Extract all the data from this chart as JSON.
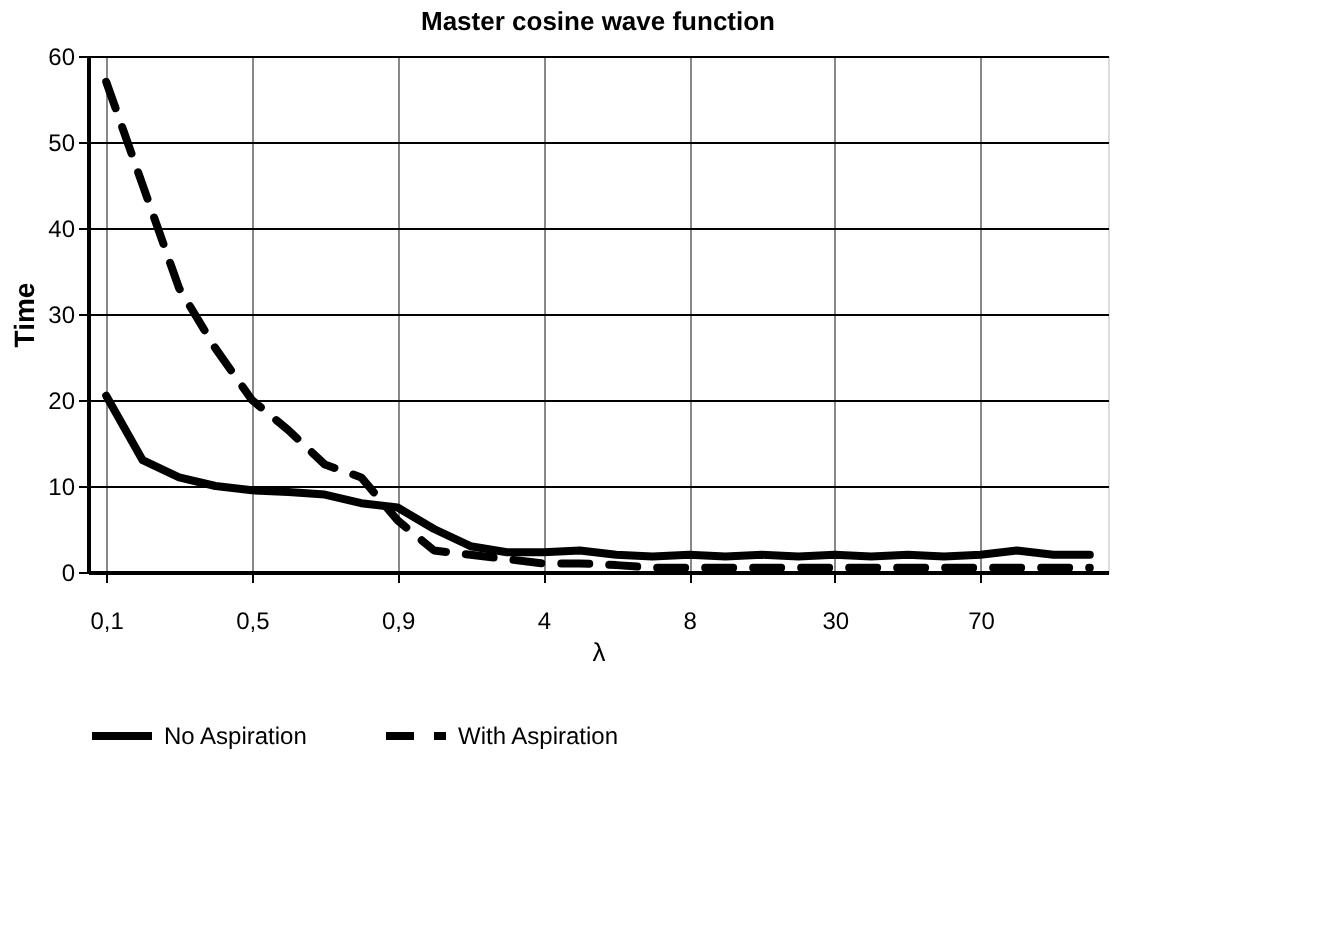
{
  "chart_data": {
    "type": "line",
    "title": "Master cosine wave function",
    "xlabel": "λ",
    "ylabel": "Time",
    "categories": [
      "0,1",
      null,
      null,
      null,
      "0,5",
      null,
      null,
      null,
      "0,9",
      null,
      null,
      null,
      "4",
      null,
      null,
      null,
      "8",
      null,
      null,
      null,
      "30",
      null,
      null,
      null,
      "70",
      null,
      null,
      null
    ],
    "series": [
      {
        "name": "No Aspiration",
        "color": "#000000",
        "line_style": "solid",
        "values": [
          20.5,
          13,
          11,
          10,
          9.5,
          9.3,
          9,
          8,
          7.5,
          5,
          3,
          2.3,
          2.3,
          2.5,
          2,
          1.8,
          2,
          1.8,
          2,
          1.8,
          2,
          1.8,
          2,
          1.8,
          2,
          2.5,
          2,
          2
        ]
      },
      {
        "name": "With Aspiration",
        "color": "#000000",
        "line_style": "dashed",
        "values": [
          57,
          45,
          33,
          26,
          20,
          16.5,
          12.5,
          11,
          6,
          2.5,
          2,
          1.5,
          1,
          1,
          0.8,
          0.5,
          0.5,
          0.5,
          0.5,
          0.5,
          0.5,
          0.5,
          0.5,
          0.5,
          0.5,
          0.5,
          0.5,
          0.5
        ]
      }
    ],
    "ylim": [
      0,
      60
    ],
    "yticks": [
      0,
      10,
      20,
      30,
      40,
      50,
      60
    ],
    "grid": true,
    "legend": "bottom",
    "marker": "none"
  }
}
